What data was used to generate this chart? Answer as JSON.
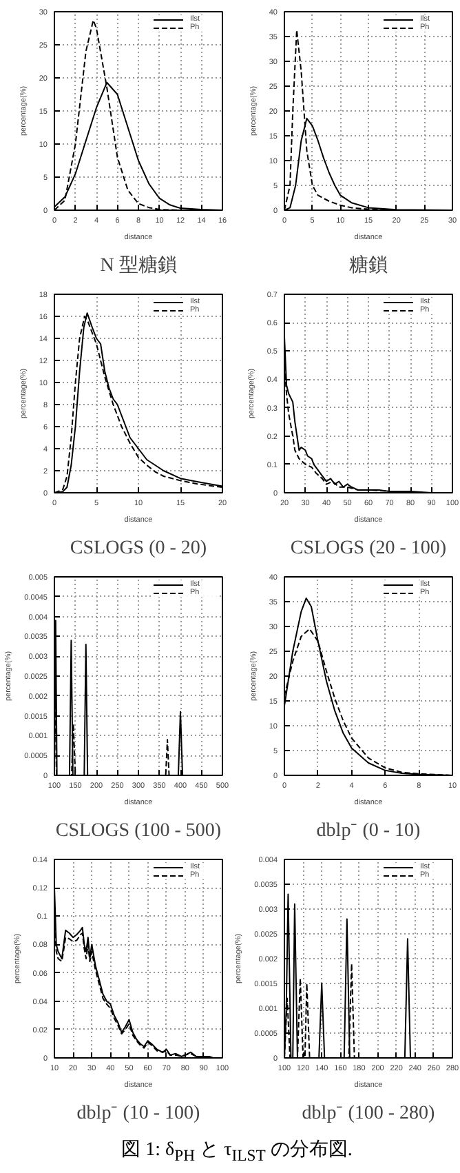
{
  "chart_data": [
    {
      "type": "line",
      "title": "N 型糖鎖",
      "xlabel": "distance",
      "ylabel": "percentage(%)",
      "xlim": [
        0,
        16
      ],
      "xticks": [
        0,
        2,
        4,
        6,
        8,
        10,
        12,
        14,
        16
      ],
      "ylim": [
        0,
        30
      ],
      "yticks": [
        0,
        5,
        10,
        15,
        20,
        25,
        30
      ],
      "grid": true,
      "legend": "top right",
      "series": [
        {
          "name": "Ilst",
          "color": "#000000",
          "line_style": "solid",
          "x": [
            0,
            1,
            2,
            3,
            4,
            5,
            6,
            7,
            8,
            9,
            10,
            11,
            12,
            13,
            14,
            16
          ],
          "values": [
            0.5,
            2,
            5.5,
            10.5,
            15.5,
            19.3,
            17.5,
            12.5,
            7.5,
            4,
            1.8,
            0.8,
            0.3,
            0.2,
            0.1,
            0
          ]
        },
        {
          "name": "Ph",
          "color": "#000000",
          "line_style": "dashed",
          "x": [
            0,
            1,
            2,
            3,
            3.7,
            4,
            5,
            6,
            7,
            8,
            9,
            10,
            12,
            16
          ],
          "values": [
            0,
            1.5,
            10,
            24,
            28.7,
            27.5,
            18.5,
            8,
            3,
            1,
            0.4,
            0.1,
            0,
            0
          ]
        }
      ]
    },
    {
      "type": "line",
      "title": "糖鎖",
      "xlabel": "distance",
      "ylabel": "percentage(%)",
      "xlim": [
        0,
        30
      ],
      "xticks": [
        0,
        5,
        10,
        15,
        20,
        25,
        30
      ],
      "ylim": [
        0,
        40
      ],
      "yticks": [
        0,
        5,
        10,
        15,
        20,
        25,
        30,
        35,
        40
      ],
      "grid": true,
      "legend": "top right",
      "series": [
        {
          "name": "Ilst",
          "color": "#000000",
          "line_style": "solid",
          "x": [
            0,
            1,
            2,
            3,
            4,
            5,
            6,
            7,
            8,
            9,
            10,
            12,
            15,
            20,
            30
          ],
          "values": [
            0,
            0.5,
            5,
            14,
            18.5,
            17,
            14,
            10.5,
            7.5,
            5,
            3,
            1.5,
            0.5,
            0.1,
            0
          ]
        },
        {
          "name": "Ph",
          "color": "#000000",
          "line_style": "dashed",
          "x": [
            0,
            1,
            1.5,
            2.2,
            3,
            4,
            5,
            6,
            8,
            10,
            12,
            15,
            20,
            30
          ],
          "values": [
            0,
            5,
            20,
            36.3,
            28,
            12,
            5,
            3,
            1.8,
            1,
            0.5,
            0.2,
            0,
            0
          ]
        }
      ]
    },
    {
      "type": "line",
      "title": "CSLOGS (0 - 20)",
      "xlabel": "distance",
      "ylabel": "percentage(%)",
      "xlim": [
        0,
        20
      ],
      "xticks": [
        0,
        5,
        10,
        15,
        20
      ],
      "ylim": [
        0,
        18
      ],
      "yticks": [
        0,
        2,
        4,
        6,
        8,
        10,
        12,
        14,
        16,
        18
      ],
      "grid": true,
      "legend": "top right",
      "series": [
        {
          "name": "Ilst",
          "color": "#000000",
          "line_style": "solid",
          "x": [
            0,
            1,
            1.5,
            2,
            2.5,
            3,
            3.5,
            3.9,
            4.5,
            5,
            5.5,
            6,
            6.5,
            7,
            7.5,
            8,
            9,
            10,
            11,
            12,
            13,
            15,
            17,
            20
          ],
          "values": [
            0,
            0.1,
            0.5,
            2.5,
            6,
            11,
            15,
            16.3,
            15,
            14,
            13.5,
            11,
            9.5,
            8.5,
            8,
            7,
            5,
            4,
            3,
            2.5,
            2,
            1.3,
            1,
            0.6
          ]
        },
        {
          "name": "Ph",
          "color": "#000000",
          "line_style": "dashed",
          "x": [
            0,
            1,
            1.5,
            2,
            2.5,
            3,
            3.6,
            4,
            5,
            6,
            7,
            8,
            9,
            10,
            11,
            12,
            13,
            15,
            17,
            20
          ],
          "values": [
            0,
            0.3,
            1.5,
            5,
            10,
            14,
            16,
            15.5,
            13.5,
            10.5,
            8,
            6,
            4.5,
            3.2,
            2.5,
            1.9,
            1.5,
            1.1,
            0.8,
            0.5
          ]
        }
      ]
    },
    {
      "type": "line",
      "title": "CSLOGS (20 - 100)",
      "xlabel": "distance",
      "ylabel": "percentage(%)",
      "xlim": [
        20,
        100
      ],
      "xticks": [
        20,
        30,
        40,
        50,
        60,
        70,
        80,
        90,
        100
      ],
      "ylim": [
        0,
        0.7
      ],
      "yticks": [
        0,
        0.1,
        0.2,
        0.3,
        0.4,
        0.5,
        0.6,
        0.7
      ],
      "grid": true,
      "legend": "top right",
      "series": [
        {
          "name": "Ilst",
          "color": "#000000",
          "line_style": "solid",
          "x": [
            20,
            21,
            22,
            24,
            25,
            26,
            27,
            28,
            30,
            31,
            33,
            34,
            36,
            38,
            40,
            42,
            44,
            46,
            48,
            50,
            52,
            55,
            60,
            65,
            70,
            80,
            90,
            100
          ],
          "values": [
            0.55,
            0.38,
            0.35,
            0.32,
            0.25,
            0.2,
            0.15,
            0.16,
            0.15,
            0.13,
            0.12,
            0.1,
            0.08,
            0.06,
            0.04,
            0.05,
            0.03,
            0.04,
            0.02,
            0.03,
            0.02,
            0.01,
            0.01,
            0.01,
            0.005,
            0.005,
            0,
            0
          ]
        },
        {
          "name": "Ph",
          "color": "#000000",
          "line_style": "dashed",
          "x": [
            20,
            21,
            22,
            24,
            25,
            27,
            30,
            33,
            35,
            38,
            40,
            43,
            46,
            50,
            55,
            60,
            70,
            80,
            100
          ],
          "values": [
            0.45,
            0.35,
            0.28,
            0.2,
            0.15,
            0.12,
            0.1,
            0.09,
            0.07,
            0.05,
            0.03,
            0.04,
            0.02,
            0.02,
            0.01,
            0.01,
            0.005,
            0,
            0
          ]
        }
      ]
    },
    {
      "type": "line",
      "title": "CSLOGS (100 - 500)",
      "xlabel": "distance",
      "ylabel": "percentage(%)",
      "xlim": [
        100,
        500
      ],
      "xticks": [
        100,
        150,
        200,
        250,
        300,
        350,
        400,
        450,
        500
      ],
      "ylim": [
        0,
        0.005
      ],
      "yticks": [
        0,
        0.0005,
        0.001,
        0.0015,
        0.002,
        0.0025,
        0.003,
        0.0035,
        0.004,
        0.0045,
        0.005
      ],
      "grid": true,
      "legend": "top right",
      "series": [
        {
          "name": "Ilst",
          "color": "#000000",
          "line_style": "solid",
          "x": [
            100,
            103,
            106,
            136,
            140,
            144,
            171,
            175,
            179,
            395,
            400,
            405,
            500
          ],
          "values": [
            0,
            0.0039,
            0,
            0,
            0.0034,
            0,
            0,
            0.0033,
            0,
            0,
            0.0016,
            0,
            0
          ]
        },
        {
          "name": "Ph",
          "color": "#000000",
          "line_style": "dashed",
          "x": [
            100,
            102,
            105,
            141,
            145,
            150,
            365,
            369,
            373,
            500
          ],
          "values": [
            0,
            0.0033,
            0,
            0,
            0.0013,
            0,
            0,
            0.0009,
            0,
            0
          ]
        }
      ]
    },
    {
      "type": "line",
      "title": "dblp⁻ (0 - 10)",
      "xlabel": "distance",
      "ylabel": "percentage(%)",
      "xlim": [
        0,
        10
      ],
      "xticks": [
        0,
        2,
        4,
        6,
        8,
        10
      ],
      "ylim": [
        0,
        40
      ],
      "yticks": [
        0,
        5,
        10,
        15,
        20,
        25,
        30,
        35,
        40
      ],
      "grid": true,
      "legend": "top right",
      "series": [
        {
          "name": "Ilst",
          "color": "#000000",
          "line_style": "solid",
          "x": [
            0,
            0.5,
            1,
            1.3,
            1.6,
            2,
            2.5,
            3,
            3.5,
            4,
            5,
            6,
            7,
            8,
            10
          ],
          "values": [
            14,
            25,
            33,
            35.7,
            34,
            27,
            19,
            13,
            8.5,
            5.5,
            2.5,
            1,
            0.4,
            0.2,
            0
          ]
        },
        {
          "name": "Ph",
          "color": "#000000",
          "line_style": "dashed",
          "x": [
            0,
            0.5,
            1,
            1.5,
            2,
            2.5,
            3,
            3.5,
            4,
            5,
            6,
            7,
            8,
            10
          ],
          "values": [
            16,
            23,
            28,
            29.5,
            27,
            21,
            15.5,
            11,
            7.5,
            3.5,
            1.5,
            0.6,
            0.3,
            0
          ]
        }
      ]
    },
    {
      "type": "line",
      "title": "dblp⁻ (10 - 100)",
      "xlabel": "distance",
      "ylabel": "percentage(%)",
      "xlim": [
        10,
        100
      ],
      "xticks": [
        10,
        20,
        30,
        40,
        50,
        60,
        70,
        80,
        90,
        100
      ],
      "ylim": [
        0,
        0.14
      ],
      "yticks": [
        0,
        0.02,
        0.04,
        0.06,
        0.08,
        0.1,
        0.12,
        0.14
      ],
      "grid": true,
      "legend": "top right",
      "series": [
        {
          "name": "Ilst",
          "color": "#000000",
          "line_style": "solid",
          "x": [
            10,
            11,
            12,
            14,
            16,
            18,
            20,
            22,
            24,
            25,
            26,
            27,
            28,
            29,
            30,
            32,
            34,
            36,
            38,
            40,
            42,
            44,
            46,
            48,
            50,
            52,
            54,
            56,
            58,
            60,
            62,
            65,
            68,
            70,
            72,
            75,
            78,
            80,
            83,
            86,
            90,
            93,
            95
          ],
          "values": [
            0.12,
            0.08,
            0.075,
            0.07,
            0.09,
            0.088,
            0.085,
            0.087,
            0.09,
            0.092,
            0.08,
            0.075,
            0.085,
            0.07,
            0.08,
            0.065,
            0.055,
            0.045,
            0.04,
            0.038,
            0.03,
            0.025,
            0.018,
            0.022,
            0.027,
            0.018,
            0.013,
            0.01,
            0.008,
            0.012,
            0.01,
            0.006,
            0.004,
            0.006,
            0.002,
            0.003,
            0.001,
            0.002,
            0.004,
            0.001,
            0.001,
            0.001,
            0
          ]
        },
        {
          "name": "Ph",
          "color": "#000000",
          "line_style": "dashed",
          "x": [
            10,
            11,
            12,
            14,
            16,
            18,
            20,
            22,
            24,
            25,
            26,
            27,
            28,
            29,
            30,
            32,
            34,
            36,
            38,
            40,
            42,
            44,
            46,
            48,
            50,
            52,
            54,
            56,
            58,
            60,
            62,
            65,
            68,
            70,
            72,
            75,
            78,
            80,
            83,
            86,
            90,
            93,
            95
          ],
          "values": [
            0.1,
            0.075,
            0.07,
            0.068,
            0.085,
            0.084,
            0.082,
            0.083,
            0.087,
            0.088,
            0.077,
            0.07,
            0.08,
            0.068,
            0.075,
            0.062,
            0.052,
            0.042,
            0.038,
            0.035,
            0.028,
            0.023,
            0.017,
            0.02,
            0.024,
            0.016,
            0.012,
            0.009,
            0.007,
            0.011,
            0.009,
            0.005,
            0.004,
            0.005,
            0.002,
            0.002,
            0.001,
            0.002,
            0.003,
            0.001,
            0.001,
            0,
            0
          ]
        }
      ]
    },
    {
      "type": "line",
      "title": "dblp⁻ (100 - 280)",
      "xlabel": "distance",
      "ylabel": "percentage(%)",
      "xlim": [
        100,
        280
      ],
      "xticks": [
        100,
        120,
        140,
        160,
        180,
        200,
        220,
        240,
        260,
        280
      ],
      "ylim": [
        0,
        0.004
      ],
      "yticks": [
        0,
        0.0005,
        0.001,
        0.0015,
        0.002,
        0.0025,
        0.003,
        0.0035,
        0.004
      ],
      "grid": true,
      "legend": "top right",
      "annotations": [
        "図 1: δ$_{PH}$ と τ$_{ILST}$ の分布図."
      ],
      "series": [
        {
          "name": "Ilst",
          "color": "#000000",
          "line_style": "solid",
          "x": [
            100,
            102,
            104,
            107,
            109,
            111,
            114,
            137,
            140,
            143,
            164,
            167,
            170,
            229,
            232,
            235,
            280
          ],
          "values": [
            0,
            0.001,
            0.0033,
            0,
            0,
            0.0031,
            0,
            0,
            0.0015,
            0,
            0,
            0.0028,
            0,
            0,
            0.0024,
            0,
            0
          ]
        },
        {
          "name": "Ph",
          "color": "#000000",
          "line_style": "dashed",
          "x": [
            100,
            103,
            106,
            114,
            117,
            120,
            122,
            124,
            127,
            169,
            172,
            175,
            280
          ],
          "values": [
            0,
            0.0012,
            0,
            0,
            0.0016,
            0,
            0,
            0.0015,
            0,
            0,
            0.0019,
            0,
            0
          ]
        }
      ]
    }
  ]
}
